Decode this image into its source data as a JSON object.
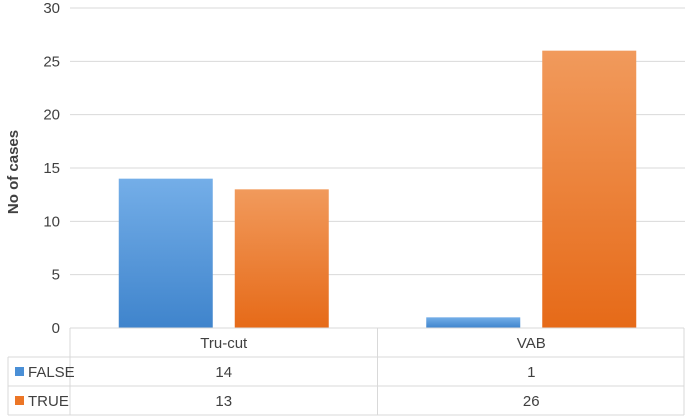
{
  "chart_data": {
    "type": "bar",
    "title": "",
    "xlabel": "",
    "ylabel": "No of cases",
    "ylim": [
      0,
      30
    ],
    "yticks": [
      0,
      5,
      10,
      15,
      20,
      25,
      30
    ],
    "grid": true,
    "legend_placement": "data-table",
    "categories": [
      "Tru-cut",
      "VAB"
    ],
    "series": [
      {
        "name": "FALSE",
        "values": [
          14,
          1
        ],
        "color": "#4a8fd6"
      },
      {
        "name": "TRUE",
        "values": [
          13,
          26
        ],
        "color": "#ec7626"
      }
    ]
  }
}
